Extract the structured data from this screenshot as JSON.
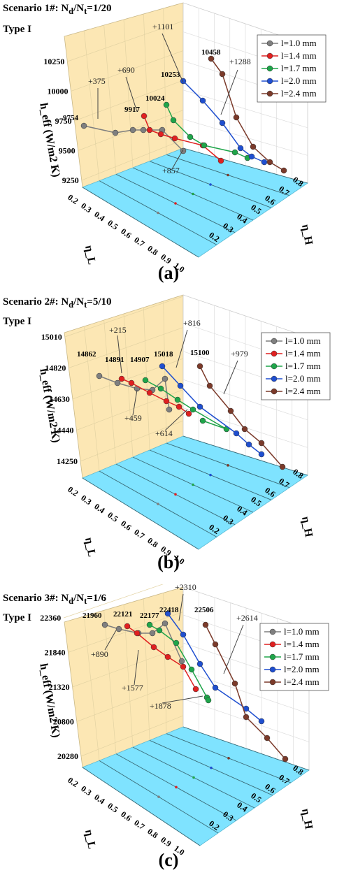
{
  "panels": [
    {
      "scenario": "Scenario 1#: N",
      "scenario_sub_d": "d",
      "scenario_mid": "/N",
      "scenario_sub_t": "t",
      "scenario_ratio": "=1/20",
      "type": "Type I",
      "label": "(a)",
      "ylabel": "h_eff (W/m2 K)",
      "yticks": [
        "9250",
        "9500",
        "9750",
        "10000",
        "10250"
      ],
      "series_max": [
        "9754",
        "9917",
        "10024",
        "10253",
        "10458"
      ],
      "increments": [
        "+375",
        "+690",
        "+857",
        "+1101",
        "+1288"
      ]
    },
    {
      "scenario": "Scenario 2#: N",
      "scenario_sub_d": "d",
      "scenario_mid": "/N",
      "scenario_sub_t": "t",
      "scenario_ratio": "=5/10",
      "type": "Type I",
      "label": "(b)",
      "ylabel": "h_eff (W/m2 K)",
      "yticks": [
        "14250",
        "14440",
        "14630",
        "14820",
        "15010"
      ],
      "series_max": [
        "14862",
        "14891",
        "14907",
        "15018",
        "15100"
      ],
      "increments": [
        "+215",
        "+459",
        "+614",
        "+816",
        "+979"
      ]
    },
    {
      "scenario": "Scenario 3#: N",
      "scenario_sub_d": "d",
      "scenario_mid": "/N",
      "scenario_sub_t": "t",
      "scenario_ratio": "=1/6",
      "type": "Type I",
      "label": "(c)",
      "ylabel": "h_eff (W/m2 K)",
      "yticks": [
        "20280",
        "20800",
        "21320",
        "21840",
        "22360"
      ],
      "series_max": [
        "21960",
        "22121",
        "22177",
        "22418",
        "22506"
      ],
      "increments": [
        "+890",
        "+1577",
        "+1878",
        "+2310",
        "+2614"
      ]
    }
  ],
  "legend": [
    "l=1.0 mm",
    "l=1.4 mm",
    "l=1.7 mm",
    "l=2.0 mm",
    "l=2.4 mm"
  ],
  "colors": {
    "series": [
      "#7f7f7f",
      "#e02020",
      "#1fa54a",
      "#1f4fd0",
      "#7b3a2a"
    ],
    "floor": "#7fe3ff",
    "wall": "#fce7b4"
  },
  "axes": {
    "x_name": "η_L",
    "z_name": "η_H",
    "x_ticks": [
      "0.2",
      "0.3",
      "0.4",
      "0.5",
      "0.6",
      "0.7",
      "0.8",
      "0.9",
      "1.0"
    ],
    "z_ticks": [
      "0.2",
      "0.3",
      "0.4",
      "0.5",
      "0.6",
      "0.7",
      "0.8"
    ]
  },
  "chart_data": [
    {
      "type": "line",
      "title": "Scenario 1#: Nd/Nt=1/20, Type I",
      "xlabel": "η_L",
      "ylabel": "h_eff (W/m2 K)",
      "zlabel": "η_H",
      "ylim": [
        9250,
        10250
      ],
      "series": [
        {
          "name": "l=1.0 mm",
          "max": 9754,
          "increase": 375
        },
        {
          "name": "l=1.4 mm",
          "max": 9917,
          "increase": 690
        },
        {
          "name": "l=1.7 mm",
          "max": 10024,
          "increase": 857
        },
        {
          "name": "l=2.0 mm",
          "max": 10253,
          "increase": 1101
        },
        {
          "name": "l=2.4 mm",
          "max": 10458,
          "increase": 1288
        }
      ]
    },
    {
      "type": "line",
      "title": "Scenario 2#: Nd/Nt=5/10, Type I",
      "xlabel": "η_L",
      "ylabel": "h_eff (W/m2 K)",
      "zlabel": "η_H",
      "ylim": [
        14250,
        15010
      ],
      "series": [
        {
          "name": "l=1.0 mm",
          "max": 14862,
          "increase": 215
        },
        {
          "name": "l=1.4 mm",
          "max": 14891,
          "increase": 459
        },
        {
          "name": "l=1.7 mm",
          "max": 14907,
          "increase": 614
        },
        {
          "name": "l=2.0 mm",
          "max": 15018,
          "increase": 816
        },
        {
          "name": "l=2.4 mm",
          "max": 15100,
          "increase": 979
        }
      ]
    },
    {
      "type": "line",
      "title": "Scenario 3#: Nd/Nt=1/6, Type I",
      "xlabel": "η_L",
      "ylabel": "h_eff (W/m2 K)",
      "zlabel": "η_H",
      "ylim": [
        20280,
        22360
      ],
      "series": [
        {
          "name": "l=1.0 mm",
          "max": 21960,
          "increase": 890
        },
        {
          "name": "l=1.4 mm",
          "max": 22121,
          "increase": 1577
        },
        {
          "name": "l=1.7 mm",
          "max": 22177,
          "increase": 1878
        },
        {
          "name": "l=2.0 mm",
          "max": 22418,
          "increase": 2310
        },
        {
          "name": "l=2.4 mm",
          "max": 22506,
          "increase": 2614
        }
      ]
    }
  ]
}
